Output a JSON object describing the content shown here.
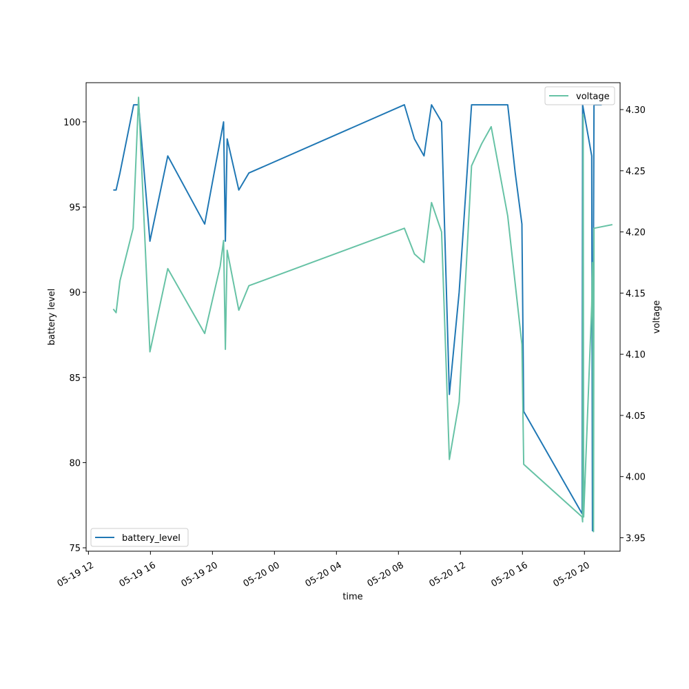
{
  "chart_data": {
    "type": "line",
    "xlabel": "time",
    "y_left_label": "battery level",
    "y_right_label": "voltage",
    "x_ticks": [
      "05-19 12",
      "05-19 16",
      "05-19 20",
      "05-20 00",
      "05-20 04",
      "05-20 08",
      "05-20 12",
      "05-20 16",
      "05-20 20"
    ],
    "x_range": [
      "2024-05-19 11:51",
      "2024-05-20 22:18"
    ],
    "y_left_range": [
      74.8,
      102.3
    ],
    "y_left_ticks": [
      75,
      80,
      85,
      90,
      95,
      100
    ],
    "y_right_range": [
      3.939,
      4.322
    ],
    "y_right_ticks": [
      3.95,
      4.0,
      4.05,
      4.1,
      4.15,
      4.2,
      4.25,
      4.3
    ],
    "series": [
      {
        "name": "battery_level",
        "axis": "left",
        "color": "#1f77b4",
        "legend_position": "lower left",
        "points": [
          [
            "2024-05-19 13:36",
            96
          ],
          [
            "2024-05-19 13:47",
            96
          ],
          [
            "2024-05-19 14:02",
            97
          ],
          [
            "2024-05-19 14:55",
            101
          ],
          [
            "2024-05-19 15:14",
            101
          ],
          [
            "2024-05-19 15:58",
            93
          ],
          [
            "2024-05-19 17:07",
            98
          ],
          [
            "2024-05-19 19:30",
            94
          ],
          [
            "2024-05-19 20:43",
            100
          ],
          [
            "2024-05-19 20:50",
            93
          ],
          [
            "2024-05-19 20:57",
            99
          ],
          [
            "2024-05-19 21:42",
            96
          ],
          [
            "2024-05-19 22:21",
            97
          ],
          [
            "2024-05-20 08:23",
            101
          ],
          [
            "2024-05-20 09:02",
            99
          ],
          [
            "2024-05-20 09:39",
            98
          ],
          [
            "2024-05-20 10:08",
            101
          ],
          [
            "2024-05-20 10:47",
            100
          ],
          [
            "2024-05-20 11:17",
            84
          ],
          [
            "2024-05-20 11:55",
            90
          ],
          [
            "2024-05-20 12:43",
            101
          ],
          [
            "2024-05-20 15:03",
            101
          ],
          [
            "2024-05-20 15:32",
            97
          ],
          [
            "2024-05-20 15:58",
            94
          ],
          [
            "2024-05-20 16:05",
            83
          ],
          [
            "2024-05-20 19:51",
            77
          ],
          [
            "2024-05-20 19:53",
            101
          ],
          [
            "2024-05-20 20:28",
            98
          ],
          [
            "2024-05-20 20:31",
            76
          ],
          [
            "2024-05-20 20:37",
            101
          ],
          [
            "2024-05-20 21:07",
            101
          ]
        ]
      },
      {
        "name": "voltage",
        "axis": "right",
        "color": "#66c2a5",
        "legend_position": "upper right",
        "points": [
          [
            "2024-05-19 13:36",
            4.137
          ],
          [
            "2024-05-19 13:47",
            4.134
          ],
          [
            "2024-05-19 14:02",
            4.16
          ],
          [
            "2024-05-19 14:53",
            4.203
          ],
          [
            "2024-05-19 15:14",
            4.31
          ],
          [
            "2024-05-19 15:58",
            4.102
          ],
          [
            "2024-05-19 17:07",
            4.17
          ],
          [
            "2024-05-19 19:30",
            4.117
          ],
          [
            "2024-05-19 20:30",
            4.172
          ],
          [
            "2024-05-19 20:43",
            4.193
          ],
          [
            "2024-05-19 20:50",
            4.104
          ],
          [
            "2024-05-19 20:57",
            4.185
          ],
          [
            "2024-05-19 21:42",
            4.136
          ],
          [
            "2024-05-19 22:21",
            4.156
          ],
          [
            "2024-05-20 08:23",
            4.203
          ],
          [
            "2024-05-20 09:02",
            4.182
          ],
          [
            "2024-05-20 09:39",
            4.175
          ],
          [
            "2024-05-20 10:08",
            4.224
          ],
          [
            "2024-05-20 10:47",
            4.2
          ],
          [
            "2024-05-20 11:17",
            4.014
          ],
          [
            "2024-05-20 11:55",
            4.061
          ],
          [
            "2024-05-20 12:43",
            4.254
          ],
          [
            "2024-05-20 13:22",
            4.272
          ],
          [
            "2024-05-20 13:59",
            4.286
          ],
          [
            "2024-05-20 15:03",
            4.213
          ],
          [
            "2024-05-20 15:58",
            4.108
          ],
          [
            "2024-05-20 16:05",
            4.01
          ],
          [
            "2024-05-20 19:51",
            3.967
          ],
          [
            "2024-05-20 19:53",
            3.963
          ],
          [
            "2024-05-20 19:55",
            4.296
          ],
          [
            "2024-05-20 19:57",
            3.967
          ],
          [
            "2024-05-20 20:28",
            4.14
          ],
          [
            "2024-05-20 20:31",
            4.175
          ],
          [
            "2024-05-20 20:35",
            3.955
          ],
          [
            "2024-05-20 20:37",
            4.203
          ],
          [
            "2024-05-20 21:48",
            4.206
          ]
        ]
      }
    ]
  }
}
